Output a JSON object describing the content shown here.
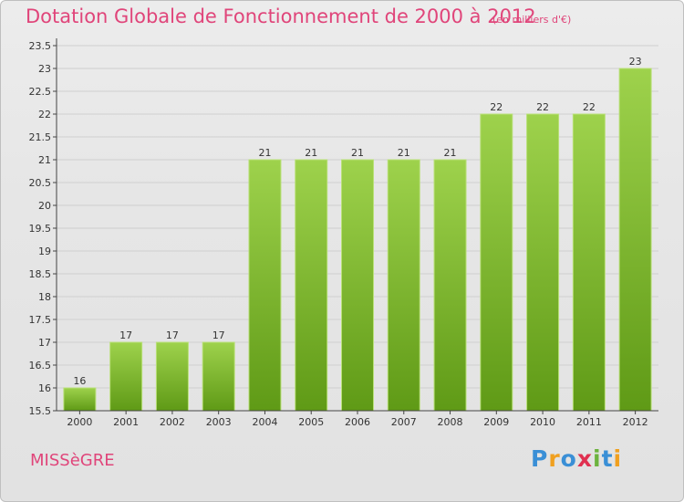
{
  "header": {
    "title": "Dotation Globale de Fonctionnement de 2000 à 2012",
    "unit": "(en milliers d'€)"
  },
  "footer": {
    "commune": "MISSèGRE",
    "logo_letters": [
      "P",
      "r",
      "o",
      "x",
      "i",
      "t",
      "i"
    ],
    "logo_colors": [
      "#3a8fd6",
      "#f0a020",
      "#3a8fd6",
      "#e03050",
      "#6db33f",
      "#3a8fd6",
      "#f0a020"
    ]
  },
  "colors": {
    "bar_top": "#9ed24c",
    "bar_bottom": "#5f9a16",
    "bar_edge": "#b9e078",
    "grid": "#cfcfcf",
    "axis": "#444444",
    "text": "#333333",
    "accent": "#e0457a"
  },
  "chart_data": {
    "type": "bar",
    "title": "Dotation Globale de Fonctionnement de 2000 à 2012",
    "subtitle": "(en milliers d'€)",
    "categories": [
      "2000",
      "2001",
      "2002",
      "2003",
      "2004",
      "2005",
      "2006",
      "2007",
      "2008",
      "2009",
      "2010",
      "2011",
      "2012"
    ],
    "values": [
      16,
      17,
      17,
      17,
      21,
      21,
      21,
      21,
      21,
      22,
      22,
      22,
      23
    ],
    "ylim": [
      15.5,
      23.5
    ],
    "yticks": [
      "15.5",
      "16",
      "16.5",
      "17",
      "17.5",
      "18",
      "18.5",
      "19",
      "19.5",
      "20",
      "20.5",
      "21",
      "21.5",
      "22",
      "22.5",
      "23",
      "23.5"
    ],
    "grid": true,
    "xlabel": "",
    "ylabel": ""
  }
}
